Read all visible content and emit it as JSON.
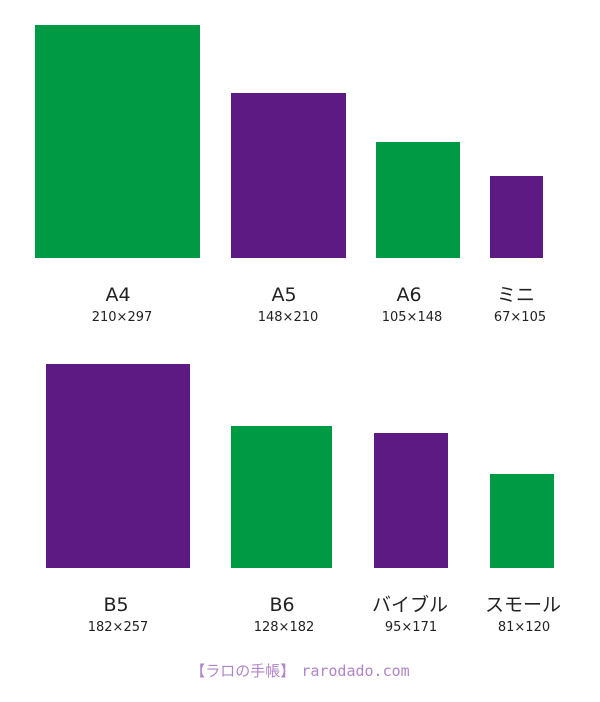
{
  "sizes": [
    {
      "name": "A4",
      "dimensions": "210×297"
    },
    {
      "name": "A5",
      "dimensions": "148×210"
    },
    {
      "name": "A6",
      "dimensions": "105×148"
    },
    {
      "name": "ミニ",
      "dimensions": "67×105"
    },
    {
      "name": "B5",
      "dimensions": "182×257"
    },
    {
      "name": "B6",
      "dimensions": "128×182"
    },
    {
      "name": "バイブル",
      "dimensions": "95×171"
    },
    {
      "name": "スモール",
      "dimensions": "81×120"
    }
  ],
  "footer": {
    "brand": "【ラロの手帳】",
    "url": "rarodado.com"
  }
}
